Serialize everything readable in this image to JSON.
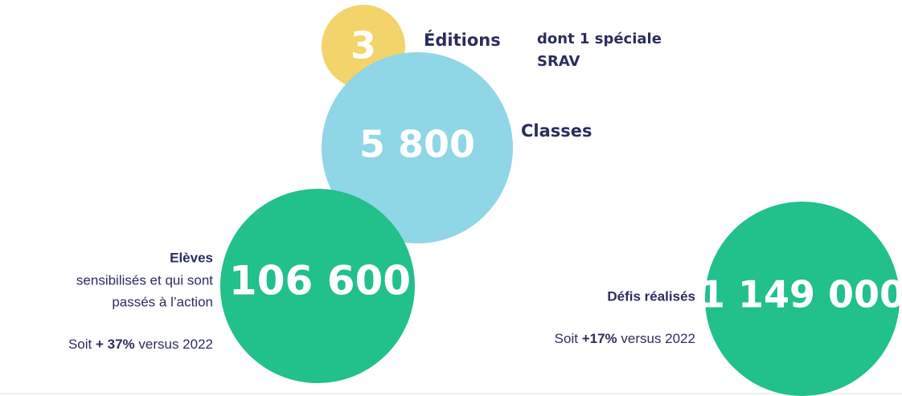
{
  "editions": {
    "number": "3",
    "label": "Éditions",
    "note_line1": "dont 1 spéciale",
    "note_line2": "SRAV"
  },
  "classes": {
    "number": "5 800",
    "label": "Classes"
  },
  "eleves": {
    "number": "106 600",
    "label": "Elèves",
    "desc_line1": "sensibilisés et qui sont",
    "desc_line2": "passés à l’action",
    "comparison": {
      "prefix": "Soit ",
      "value": "+ 37%",
      "suffix": " versus 2022"
    }
  },
  "defis": {
    "number": "1 149 000",
    "label": "Défis réalisés",
    "comparison": {
      "prefix": "Soit ",
      "value": "+17%",
      "suffix": " versus 2022"
    }
  }
}
